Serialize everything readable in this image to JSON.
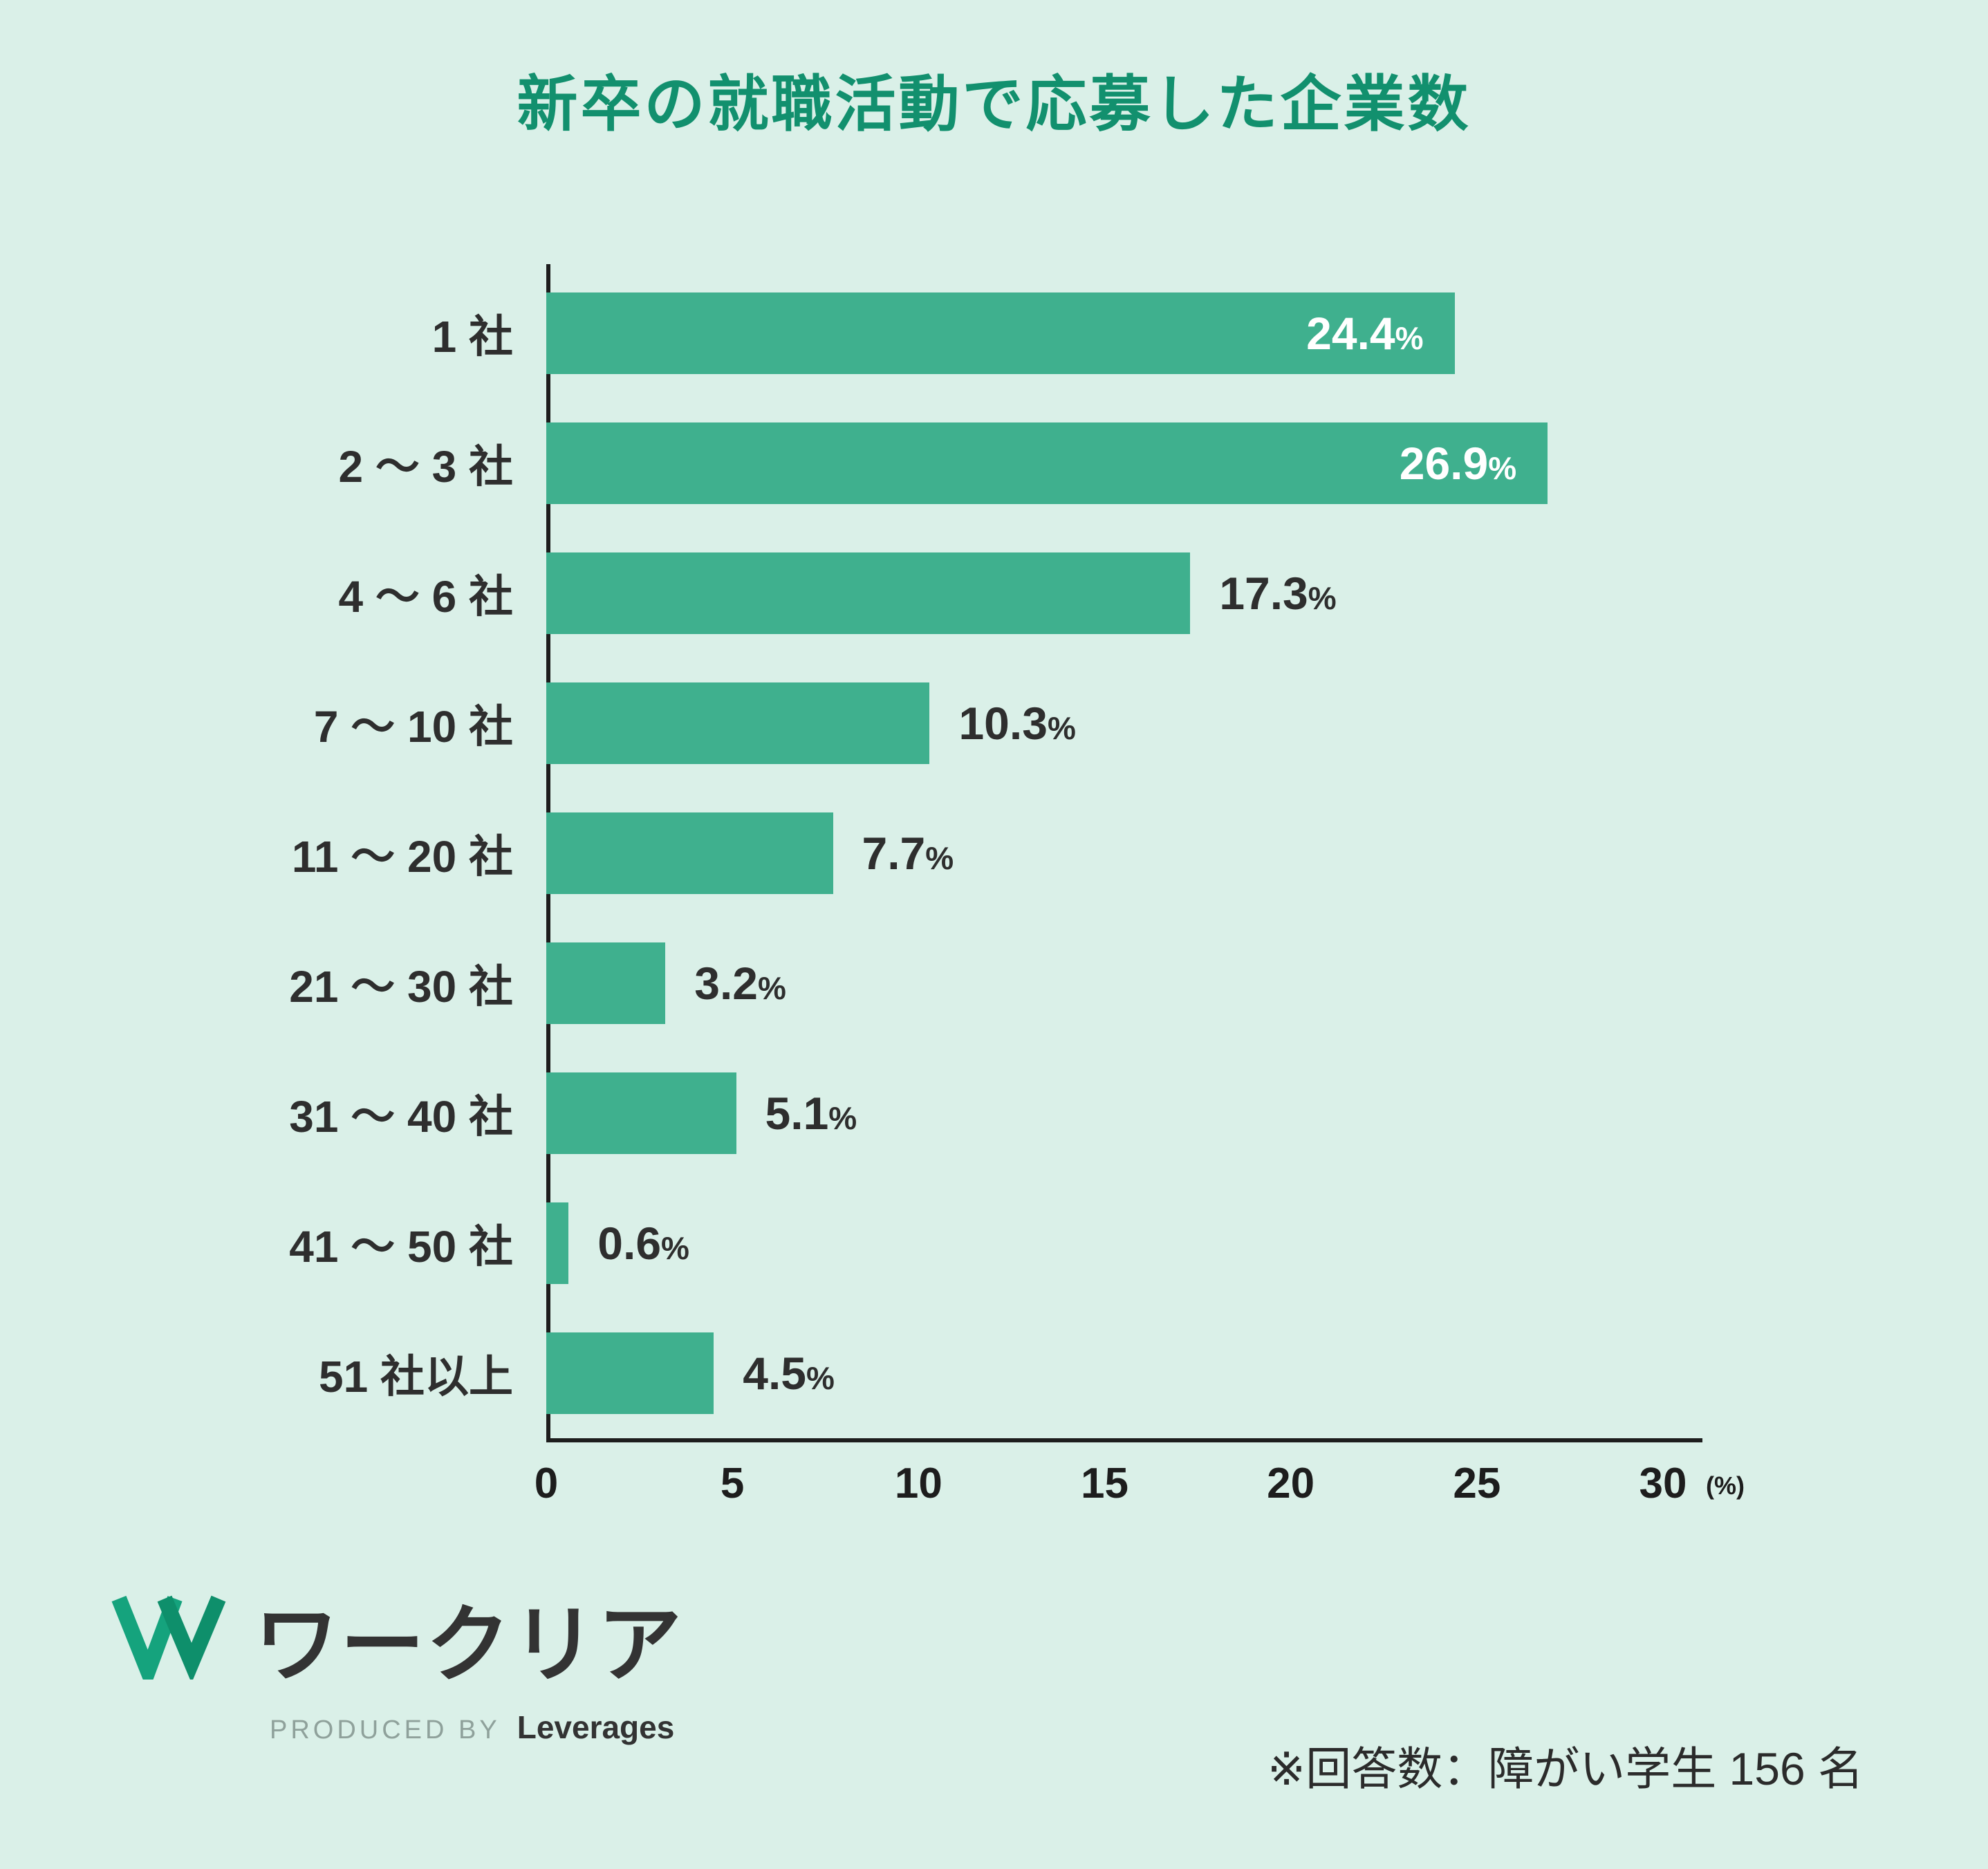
{
  "page": {
    "background": "#daf0e8",
    "title": "新卒の就職活動で応募した企業数",
    "title_color": "#12906e"
  },
  "chart_data": {
    "type": "bar",
    "orientation": "horizontal",
    "title": "新卒の就職活動で応募した企業数",
    "categories": [
      "1 社",
      "2 ～ 3 社",
      "4 ～ 6 社",
      "7 ～ 10 社",
      "11 ～ 20 社",
      "21 ～ 30 社",
      "31 ～ 40 社",
      "41 ～ 50 社",
      "51 社以上"
    ],
    "values": [
      24.4,
      26.9,
      17.3,
      10.3,
      7.7,
      3.2,
      5.1,
      0.6,
      4.5
    ],
    "value_labels": [
      "24.4",
      "26.9",
      "17.3",
      "10.3",
      "7.7",
      "3.2",
      "5.1",
      "0.6",
      "4.5"
    ],
    "value_suffix": "%",
    "xlim": [
      0,
      30
    ],
    "x_ticks": [
      0,
      5,
      10,
      15,
      20,
      25,
      30
    ],
    "x_unit": "(%)",
    "grid": false,
    "legend": "none",
    "bar_color": "#3fb08e",
    "inside_label_threshold": 20,
    "inside_label_color": "#ffffff",
    "outside_label_color": "#2e2e2e"
  },
  "footer": {
    "brand_name": "ワークリア",
    "produced_by": "PRODUCED BY",
    "producer": "Leverages",
    "note": "※回答数：障がい学生 156 名",
    "logo_color_left": "#15a37d",
    "logo_color_right": "#0e8f6b"
  }
}
